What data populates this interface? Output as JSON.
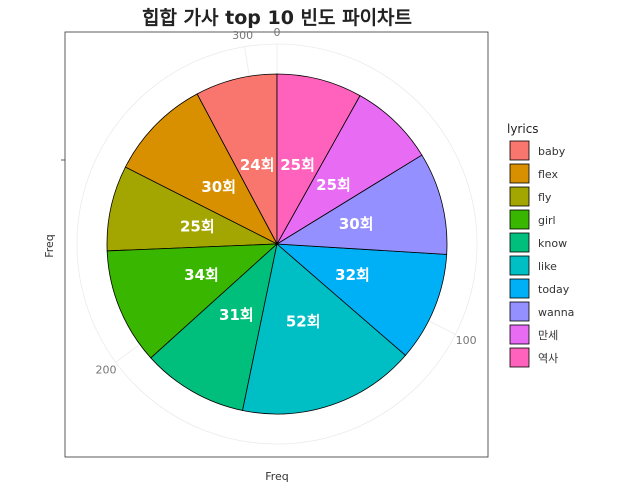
{
  "chart_data": {
    "type": "pie",
    "title": "힙합 가사 top 10 빈도 파이차트",
    "xlabel": "Freq",
    "ylabel": "Freq",
    "legend_title": "lyrics",
    "legend_position": "right",
    "radial_ticks": [
      "0",
      "100",
      "200",
      "300"
    ],
    "categories": [
      "baby",
      "flex",
      "fly",
      "girl",
      "know",
      "like",
      "today",
      "wanna",
      "만세",
      "역사"
    ],
    "values": [
      24,
      30,
      25,
      34,
      31,
      52,
      32,
      30,
      25,
      25
    ],
    "labels": [
      "24회",
      "30회",
      "25회",
      "34회",
      "31회",
      "52회",
      "32회",
      "30회",
      "25회",
      "25회"
    ],
    "colors": [
      "#F8766D",
      "#D89000",
      "#A3A500",
      "#39B600",
      "#00BF7D",
      "#00BFC4",
      "#00B0F6",
      "#9590FF",
      "#E76BF3",
      "#FF62BC"
    ],
    "total": 308
  }
}
